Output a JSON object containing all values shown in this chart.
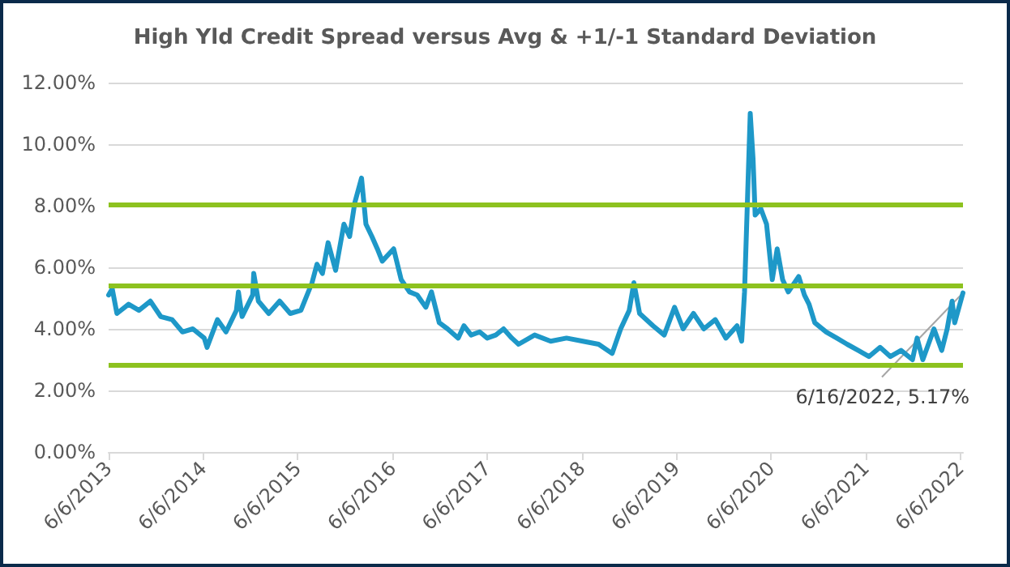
{
  "chart_data": {
    "type": "line",
    "title": "High Yld Credit Spread versus Avg & +1/-1 Standard Deviation",
    "x": [
      "2013-06-06",
      "2013-06-20",
      "2013-07-08",
      "2013-08-22",
      "2013-10-01",
      "2013-11-14",
      "2013-12-24",
      "2014-02-06",
      "2014-03-18",
      "2014-04-27",
      "2014-06-10",
      "2014-06-21",
      "2014-07-31",
      "2014-09-02",
      "2014-10-12",
      "2014-10-20",
      "2014-11-03",
      "2014-12-14",
      "2014-12-18",
      "2015-01-05",
      "2015-02-14",
      "2015-03-28",
      "2015-05-08",
      "2015-06-18",
      "2015-07-31",
      "2015-08-19",
      "2015-09-09",
      "2015-10-01",
      "2015-10-30",
      "2015-12-01",
      "2015-12-23",
      "2016-01-12",
      "2016-02-07",
      "2016-02-24",
      "2016-03-18",
      "2016-04-08",
      "2016-04-27",
      "2016-06-10",
      "2016-07-09",
      "2016-08-10",
      "2016-09-09",
      "2016-10-12",
      "2016-11-03",
      "2016-12-03",
      "2017-01-04",
      "2017-02-14",
      "2017-03-08",
      "2017-04-05",
      "2017-05-08",
      "2017-06-06",
      "2017-07-09",
      "2017-08-08",
      "2017-09-09",
      "2017-10-05",
      "2017-12-06",
      "2018-02-06",
      "2018-04-08",
      "2018-06-10",
      "2018-08-10",
      "2018-10-01",
      "2018-11-03",
      "2018-12-06",
      "2018-12-24",
      "2019-01-15",
      "2019-03-08",
      "2019-04-20",
      "2019-05-30",
      "2019-07-02",
      "2019-08-11",
      "2019-09-20",
      "2019-11-03",
      "2019-12-14",
      "2020-01-26",
      "2020-02-13",
      "2020-02-24",
      "2020-03-17",
      "2020-03-28",
      "2020-04-05",
      "2020-04-27",
      "2020-05-19",
      "2020-06-10",
      "2020-06-29",
      "2020-07-20",
      "2020-08-11",
      "2020-09-20",
      "2020-10-12",
      "2020-10-30",
      "2020-11-21",
      "2021-01-04",
      "2021-02-14",
      "2021-03-26",
      "2021-05-08",
      "2021-06-18",
      "2021-07-31",
      "2021-09-09",
      "2021-10-20",
      "2021-12-03",
      "2021-12-21",
      "2022-01-12",
      "2022-02-24",
      "2022-03-26",
      "2022-04-16",
      "2022-05-05",
      "2022-05-15",
      "2022-06-16"
    ],
    "series": [
      {
        "color": "#1e98c8",
        "values": [
          5.1,
          5.3,
          4.5,
          4.8,
          4.6,
          4.9,
          4.4,
          4.3,
          3.9,
          4.0,
          3.7,
          3.4,
          4.3,
          3.9,
          4.6,
          5.2,
          4.4,
          5.1,
          5.8,
          4.9,
          4.5,
          4.9,
          4.5,
          4.6,
          5.5,
          6.1,
          5.8,
          6.8,
          5.9,
          7.4,
          7.0,
          8.1,
          8.9,
          7.4,
          7.0,
          6.6,
          6.2,
          6.6,
          5.6,
          5.2,
          5.1,
          4.7,
          5.2,
          4.2,
          4.0,
          3.7,
          4.1,
          3.8,
          3.9,
          3.7,
          3.8,
          4.0,
          3.7,
          3.5,
          3.8,
          3.6,
          3.7,
          3.6,
          3.5,
          3.2,
          4.0,
          4.6,
          5.5,
          4.5,
          4.1,
          3.8,
          4.7,
          4.0,
          4.5,
          4.0,
          4.3,
          3.7,
          4.1,
          3.6,
          5.2,
          11.0,
          9.5,
          7.7,
          7.9,
          7.4,
          5.6,
          6.6,
          5.6,
          5.2,
          5.7,
          5.1,
          4.8,
          4.2,
          3.9,
          3.7,
          3.5,
          3.3,
          3.1,
          3.4,
          3.1,
          3.3,
          3.0,
          3.7,
          3.0,
          4.0,
          3.3,
          4.0,
          4.9,
          4.2,
          5.17
        ]
      }
    ],
    "xlim": [
      "2013-06-06",
      "2022-06-16"
    ],
    "xticks": [
      {
        "value": "2013-06-06",
        "label": "6/6/2013"
      },
      {
        "value": "2014-06-06",
        "label": "6/6/2014"
      },
      {
        "value": "2015-06-06",
        "label": "6/6/2015"
      },
      {
        "value": "2016-06-06",
        "label": "6/6/2016"
      },
      {
        "value": "2017-06-06",
        "label": "6/6/2017"
      },
      {
        "value": "2018-06-06",
        "label": "6/6/2018"
      },
      {
        "value": "2019-06-06",
        "label": "6/6/2019"
      },
      {
        "value": "2020-06-06",
        "label": "6/6/2020"
      },
      {
        "value": "2021-06-06",
        "label": "6/6/2021"
      },
      {
        "value": "2022-06-06",
        "label": "6/6/2022"
      }
    ],
    "ylim": [
      0,
      12
    ],
    "yticks": [
      {
        "value": 0,
        "label": "0.00%"
      },
      {
        "value": 2,
        "label": "2.00%"
      },
      {
        "value": 4,
        "label": "4.00%"
      },
      {
        "value": 6,
        "label": "6.00%"
      },
      {
        "value": 8,
        "label": "8.00%"
      },
      {
        "value": 10,
        "label": "10.00%"
      },
      {
        "value": 12,
        "label": "12.00%"
      }
    ],
    "ref_lines": [
      {
        "axis": "y",
        "value": 8.05,
        "color": "#8dc21f"
      },
      {
        "axis": "y",
        "value": 5.43,
        "color": "#8dc21f"
      },
      {
        "axis": "y",
        "value": 2.81,
        "color": "#8dc21f"
      }
    ],
    "annotations": [
      {
        "text": "6/16/2022, 5.17%",
        "x": "2022-06-16",
        "y": 5.17
      }
    ],
    "grid": "y",
    "marker": "none",
    "line_style": "solid"
  }
}
